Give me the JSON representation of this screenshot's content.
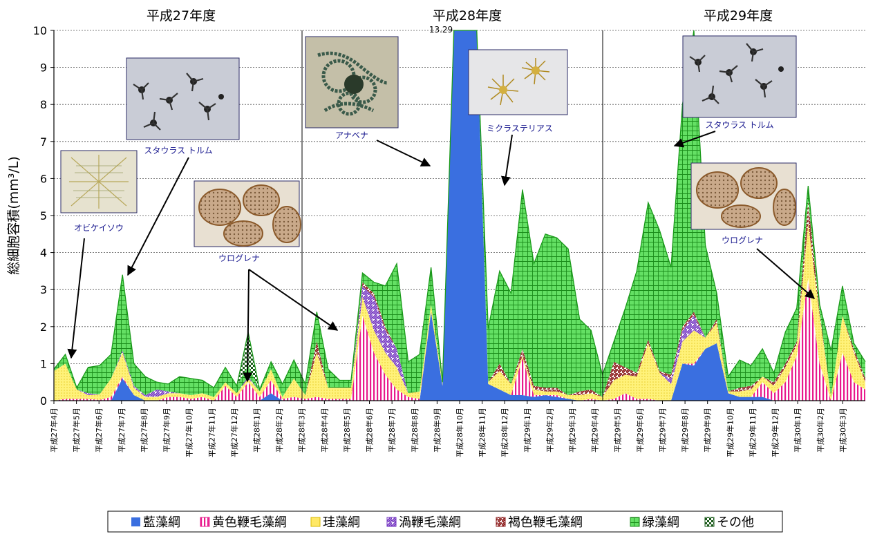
{
  "chart_data": {
    "type": "area",
    "stacked": true,
    "title": "",
    "ylabel": "総細胞容積(mm³/L)",
    "ylim": [
      0,
      10
    ],
    "yticks": [
      0,
      1,
      2,
      3,
      4,
      5,
      6,
      7,
      8,
      9,
      10
    ],
    "grid": true,
    "legend_position": "bottom",
    "fiscal_years": [
      "平成27年度",
      "平成28年度",
      "平成29年度"
    ],
    "x_labels": [
      "平成27年4月",
      "平成27年5月",
      "平成27年6月",
      "平成27年7月",
      "平成27年8月",
      "平成27年9月",
      "平成27年10月",
      "平成27年11月",
      "平成27年12月",
      "平成28年1月",
      "平成28年2月",
      "平成28年3月",
      "平成28年4月",
      "平成28年5月",
      "平成28年6月",
      "平成28年7月",
      "平成28年8月",
      "平成28年9月",
      "平成28年10月",
      "平成28年11月",
      "平成28年12月",
      "平成29年1月",
      "平成29年2月",
      "平成29年3月",
      "平成29年4月",
      "平成29年5月",
      "平成29年6月",
      "平成29年7月",
      "平成29年8月",
      "平成29年9月",
      "平成29年10月",
      "平成29年11月",
      "平成29年12月",
      "平成30年1月",
      "平成30年2月",
      "平成30年3月"
    ],
    "totals": [
      0.85,
      1.25,
      0.35,
      0.9,
      0.95,
      1.25,
      3.4,
      1.0,
      0.65,
      0.5,
      0.45,
      0.65,
      0.6,
      0.55,
      0.35,
      0.9,
      0.4,
      1.85,
      0.3,
      1.05,
      0.45,
      1.1,
      0.45,
      2.4,
      0.85,
      0.55,
      0.55,
      3.45,
      3.2,
      3.1,
      3.7,
      1.05,
      1.25,
      3.6,
      0.5,
      10,
      10,
      10,
      1.95,
      3.5,
      2.9,
      5.7,
      3.7,
      4.5,
      4.4,
      4.1,
      2.2,
      1.9,
      0.7,
      1.6,
      2.5,
      3.5,
      5.35,
      4.6,
      3.6,
      8.0,
      10.0,
      4.2,
      2.9,
      0.65,
      1.1,
      0.95,
      1.4,
      0.75,
      1.85,
      2.5,
      5.8,
      2.6,
      1.35,
      3.1,
      1.55,
      1.05
    ],
    "series": [
      {
        "name": "藍藻綱",
        "color": "#3a6fe0",
        "values": [
          0,
          0,
          0,
          0,
          0,
          0,
          0.6,
          0.15,
          0,
          0,
          0,
          0,
          0,
          0,
          0,
          0,
          0,
          0,
          0,
          0.2,
          0,
          0,
          0,
          0,
          0,
          0,
          0,
          0,
          0,
          0,
          0,
          0,
          0,
          2.4,
          0.4,
          10,
          10,
          10,
          0.45,
          0.3,
          0.15,
          0.15,
          0.1,
          0.15,
          0.1,
          0.05,
          0,
          0,
          0,
          0,
          0,
          0,
          0,
          0,
          0,
          1.0,
          0.95,
          1.4,
          1.55,
          0.2,
          0.1,
          0.1,
          0.1,
          0,
          0,
          0,
          0,
          0,
          0,
          0,
          0,
          0
        ]
      },
      {
        "name": "黄色鞭毛藻綱",
        "color": "#e8198c",
        "values": [
          0,
          0.05,
          0.05,
          0.05,
          0.02,
          0.1,
          0.05,
          0,
          0,
          0,
          0.1,
          0.1,
          0.05,
          0.1,
          0,
          0.4,
          0.1,
          0.5,
          0.1,
          0.35,
          0.05,
          0.1,
          0.05,
          0.1,
          0.05,
          0.05,
          0.05,
          2.3,
          1.3,
          0.7,
          0.3,
          0.1,
          0.05,
          0,
          0,
          0,
          0,
          0,
          0,
          0,
          0,
          1.0,
          0.05,
          0,
          0.05,
          0,
          0,
          0.05,
          0,
          0.05,
          0.2,
          0.05,
          0.05,
          0,
          0,
          0,
          0.05,
          0,
          0,
          0,
          0,
          0,
          0.4,
          0.2,
          0.5,
          1.2,
          3.3,
          1.0,
          0,
          1.3,
          0.5,
          0.3
        ]
      },
      {
        "name": "珪藻綱",
        "color": "#ffe866",
        "values": [
          0.8,
          0.95,
          0.25,
          0.1,
          0.15,
          0.5,
          0.65,
          0.2,
          0.1,
          0.1,
          0.1,
          0.1,
          0.1,
          0.1,
          0.1,
          0.1,
          0.1,
          0.1,
          0.15,
          0.3,
          0.05,
          0.5,
          0.1,
          1.2,
          0.3,
          0.3,
          0.3,
          0.5,
          0.6,
          0.6,
          0.6,
          0.1,
          0.2,
          0.2,
          0.1,
          0,
          0,
          0,
          0.05,
          0.5,
          0.3,
          0.05,
          0.15,
          0.1,
          0.1,
          0.1,
          0.15,
          0.15,
          0.1,
          0.5,
          0.5,
          0.6,
          1.5,
          0.75,
          0.45,
          0.6,
          0.9,
          0.3,
          0.55,
          0.05,
          0.15,
          0.2,
          0.15,
          0.2,
          0.4,
          0.3,
          1.5,
          1.3,
          0.1,
          1.0,
          0.8,
          0.2
        ]
      },
      {
        "name": "渦鞭毛藻綱",
        "color": "#7030c0",
        "values": [
          0,
          0,
          0,
          0.05,
          0,
          0,
          0.05,
          0.05,
          0.05,
          0.2,
          0.05,
          0,
          0,
          0,
          0,
          0,
          0,
          0.05,
          0,
          0,
          0,
          0,
          0,
          0,
          0,
          0,
          0,
          0.3,
          0.9,
          0.6,
          0.5,
          0,
          0,
          0,
          0,
          0,
          0,
          0,
          0,
          0,
          0,
          0,
          0,
          0,
          0,
          0,
          0,
          0,
          0,
          0,
          0,
          0,
          0,
          0,
          0.15,
          0.3,
          0.4,
          0,
          0,
          0,
          0,
          0,
          0,
          0,
          0,
          0,
          0,
          0,
          0,
          0,
          0,
          0
        ]
      },
      {
        "name": "褐色鞭毛藻綱",
        "color": "#8b1a1a",
        "values": [
          0,
          0,
          0,
          0,
          0,
          0,
          0,
          0,
          0,
          0,
          0,
          0,
          0,
          0,
          0,
          0,
          0,
          0,
          0,
          0,
          0,
          0,
          0,
          0.3,
          0,
          0,
          0,
          0.1,
          0.1,
          0.1,
          0,
          0,
          0,
          0,
          0,
          0,
          0,
          0,
          0,
          0.2,
          0,
          0.2,
          0.1,
          0.1,
          0.1,
          0,
          0.1,
          0.1,
          0,
          0.5,
          0.2,
          0.1,
          0.1,
          0.05,
          0.1,
          0.1,
          0.1,
          0,
          0.1,
          0,
          0.1,
          0.1,
          0,
          0.1,
          0.1,
          0.1,
          0.6,
          0.1,
          0,
          0,
          0.1,
          0.1
        ]
      },
      {
        "name": "緑藻綱",
        "color": "#30c030",
        "values": [
          0.05,
          0.25,
          0.05,
          0.7,
          0.78,
          0.65,
          2.05,
          0.6,
          0.5,
          0.2,
          0.2,
          0.45,
          0.45,
          0.35,
          0.25,
          0.4,
          0.2,
          0.3,
          0.05,
          0.2,
          0.35,
          0.5,
          0.3,
          0.8,
          0.5,
          0.2,
          0.2,
          0.25,
          0.3,
          1.1,
          2.3,
          0.85,
          1.0,
          1.0,
          0,
          0,
          0,
          0,
          1.45,
          2.5,
          2.45,
          4.3,
          3.3,
          4.15,
          4.05,
          3.95,
          1.95,
          1.6,
          0.6,
          0.55,
          1.6,
          2.75,
          3.7,
          3.8,
          2.9,
          6.0,
          7.6,
          2.5,
          0.7,
          0.4,
          0.75,
          0.55,
          0.75,
          0.25,
          0.85,
          0.9,
          0.4,
          0.2,
          1.25,
          0.8,
          0.15,
          0.45
        ]
      },
      {
        "name": "その他",
        "color": "#1a5a1a",
        "values": [
          0,
          0,
          0,
          0,
          0,
          0,
          0,
          0,
          0,
          0,
          0,
          0,
          0,
          0,
          0,
          0,
          0,
          0.9,
          0,
          0,
          0,
          0,
          0,
          0,
          0,
          0,
          0,
          0,
          0,
          0,
          0,
          0,
          0,
          0,
          0,
          0,
          0,
          0,
          0,
          0,
          0,
          0,
          0,
          0,
          0,
          0,
          0,
          0,
          0,
          0,
          0,
          0,
          0,
          0,
          0,
          0,
          0,
          0,
          0,
          0,
          0,
          0,
          0,
          0,
          0,
          0,
          0,
          0,
          0,
          0,
          0,
          0
        ]
      }
    ],
    "annotations": [
      {
        "text": "オビケイソウ"
      },
      {
        "text": "スタウラス トルム"
      },
      {
        "text": "ウログレナ"
      },
      {
        "text": "アナベナ"
      },
      {
        "text": "13.29"
      },
      {
        "text": "ミクラステリアス"
      },
      {
        "text": "スタウラス トルム"
      },
      {
        "text": "ウログレナ"
      }
    ]
  }
}
